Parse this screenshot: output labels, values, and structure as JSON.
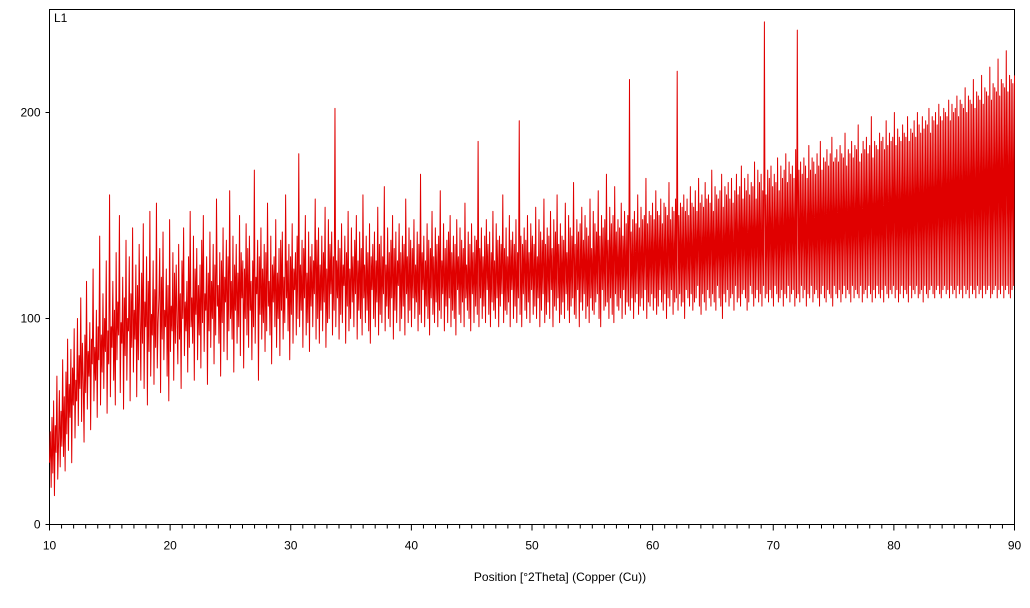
{
  "chart_data": {
    "type": "line",
    "panel_label": "L1",
    "xlabel": "Position [°2Theta] (Copper (Cu))",
    "ylabel": "",
    "xlim": [
      10,
      90
    ],
    "ylim": [
      0,
      250
    ],
    "x_ticks": [
      10,
      20,
      30,
      40,
      50,
      60,
      70,
      80,
      90
    ],
    "y_ticks": [
      0,
      100,
      200
    ],
    "grid": false,
    "legend": "none",
    "series_color": "#e00000",
    "series": [
      {
        "x_start": 10,
        "x_step": 0.1,
        "values": [
          30,
          45,
          18,
          52,
          25,
          60,
          14,
          48,
          35,
          72,
          22,
          40,
          65,
          28,
          55,
          38,
          80,
          33,
          62,
          26,
          74,
          44,
          90,
          36,
          68,
          52,
          85,
          30,
          76,
          58,
          95,
          42,
          70,
          60,
          100,
          48,
          82,
          66,
          110,
          50,
          88,
          70,
          40,
          92,
          64,
          118,
          56,
          84,
          72,
          98,
          46,
          90,
          78,
          124,
          60,
          86,
          70,
          104,
          52,
          96,
          80,
          140,
          58,
          92,
          74,
          112,
          66,
          100,
          84,
          128,
          54,
          94,
          78,
          160,
          62,
          96,
          86,
          118,
          70,
          104,
          58,
          132,
          80,
          108,
          92,
          150,
          64,
          98,
          88,
          120,
          56,
          110,
          82,
          138,
          70,
          100,
          94,
          130,
          60,
          112,
          86,
          144,
          74,
          104,
          90,
          126,
          62,
          116,
          80,
          136,
          100,
          70,
          122,
          88,
          146,
          66,
          108,
          96,
          130,
          58,
          118,
          84,
          152,
          72,
          102,
          92,
          128,
          68,
          114,
          86,
          156,
          76,
          98,
          110,
          134,
          64,
          120,
          90,
          142,
          80,
          104,
          96,
          124,
          72,
          116,
          60,
          148,
          84,
          106,
          94,
          132,
          70,
          122,
          88,
          126,
          98,
          78,
          136,
          90,
          112,
          66,
          128,
          100,
          144,
          82,
          108,
          94,
          118,
          74,
          130,
          86,
          152,
          96,
          110,
          88,
          140,
          70,
          124,
          102,
          134,
          80,
          116,
          92,
          126,
          76,
          138,
          98,
          150,
          84,
          112,
          104,
          130,
          68,
          122,
          94,
          142,
          86,
          118,
          100,
          136,
          78,
          126,
          92,
          158,
          106,
          116,
          88,
          132,
          72,
          128,
          98,
          144,
          84,
          120,
          108,
          138,
          80,
          130,
          94,
          162,
          100,
          118,
          90,
          140,
          74,
          126,
          104,
          136,
          88,
          122,
          96,
          150,
          82,
          132,
          110,
          128,
          76,
          124,
          100,
          146,
          92,
          134,
          86,
          140,
          104,
          118,
          80,
          128,
          96,
          172,
          88,
          120,
          112,
          138,
          70,
          130,
          102,
          144,
          90,
          124,
          98,
          136,
          84,
          132,
          94,
          156,
          106,
          118,
          92,
          140,
          78,
          126,
          108,
          130,
          96,
          148,
          86,
          122,
          100,
          134,
          82,
          138,
          104,
          142,
          90,
          120,
          98,
          160,
          110,
          128,
          94,
          136,
          80,
          130,
          102,
          146,
          88,
          124,
          114,
          132,
          92,
          140,
          100,
          180,
          96,
          126,
          104,
          138,
          86,
          134,
          110,
          150,
          92,
          122,
          98,
          142,
          84,
          130,
          106,
          136,
          96,
          128,
          112,
          158,
          90,
          138,
          100,
          144,
          88,
          126,
          104,
          140,
          94,
          132,
          108,
          154,
          86,
          124,
          98,
          148,
          100,
          136,
          112,
          142,
          92,
          130,
          104,
          202,
          96,
          128,
          110,
          138,
          90,
          134,
          102,
          146,
          98,
          126,
          116,
          140,
          88,
          132,
          106,
          152,
          94,
          124,
          100,
          144,
          108,
          130,
          96,
          138,
          112,
          150,
          90,
          128,
          104,
          142,
          100,
          134,
          92,
          160,
          110,
          126,
          98,
          140,
          104,
          132,
          94,
          146,
          88,
          130,
          114,
          136,
          100,
          142,
          96,
          128,
          108,
          154,
          92,
          136,
          102,
          140,
          98,
          130,
          112,
          164,
          94,
          126,
          106,
          144,
          100,
          132,
          96,
          138,
          110,
          150,
          90,
          134,
          104,
          142,
          98,
          128,
          116,
          146,
          94,
          132,
          100,
          140,
          106,
          136,
          92,
          158,
          112,
          130,
          98,
          144,
          104,
          138,
          96,
          134,
          110,
          148,
          100,
          126,
          108,
          142,
          94,
          136,
          102,
          170,
          98,
          132,
          114,
          140,
          96,
          128,
          106,
          146,
          100,
          138,
          92,
          134,
          110,
          152,
          102,
          130,
          98,
          144,
          108,
          136,
          96,
          140,
          104,
          162,
          100,
          128,
          112,
          146,
          94,
          134,
          106,
          138,
          98,
          142,
          110,
          150,
          96,
          132,
          104,
          140,
          100,
          136,
          92,
          148,
          114,
          130,
          102,
          144,
          98,
          138,
          108,
          134,
          96,
          156,
          110,
          126,
          104,
          142,
          100,
          136,
          94,
          146,
          112,
          132,
          98,
          140,
          106,
          138,
          102,
          186,
          96,
          134,
          110,
          144,
          100,
          130,
          106,
          140,
          98,
          148,
          114,
          136,
          102,
          142,
          96,
          132,
          108,
          152,
          104,
          128,
          100,
          146,
          110,
          138,
          96,
          140,
          106,
          136,
          112,
          160,
          98,
          134,
          104,
          144,
          102,
          130,
          108,
          150,
          96,
          138,
          114,
          142,
          100,
          136,
          106,
          148,
          98,
          132,
          110,
          196,
          102,
          140,
          96,
          136,
          112,
          144,
          104,
          138,
          100,
          150,
          108,
          132,
          98,
          146,
          114,
          140,
          102,
          136,
          106,
          154,
          100,
          130,
          110,
          148,
          96,
          142,
          104,
          138,
          112,
          158,
          98,
          136,
          102,
          144,
          108,
          140,
          100,
          152,
          114,
          134,
          96,
          148,
          106,
          142,
          104,
          160,
          110,
          136,
          98,
          146,
          102,
          140,
          108,
          138,
          100,
          156,
          112,
          132,
          104,
          150,
          98,
          144,
          106,
          140,
          110,
          166,
          102,
          136,
          100,
          148,
          114,
          142,
          96,
          146,
          108,
          154,
          104,
          138,
          112,
          150,
          100,
          144,
          106,
          140,
          98,
          158,
          110,
          134,
          104,
          152,
          102,
          146,
          108,
          142,
          112,
          162,
          100,
          140,
          96,
          150,
          114,
          144,
          104,
          148,
          106,
          170,
          108,
          138,
          100,
          154,
          110,
          146,
          102,
          150,
          98,
          164,
          112,
          142,
          106,
          148,
          104,
          144,
          110,
          156,
          100,
          140,
          114,
          152,
          102,
          146,
          108,
          150,
          106,
          216,
          104,
          142,
          110,
          148,
          100,
          152,
          108,
          146,
          112,
          160,
          102,
          144,
          106,
          154,
          110,
          148,
          104,
          150,
          114,
          168,
          100,
          146,
          108,
          152,
          106,
          150,
          112,
          156,
          104,
          148,
          110,
          162,
          102,
          152,
          106,
          150,
          114,
          158,
          108,
          146,
          104,
          156,
          112,
          154,
          100,
          150,
          110,
          166,
          106,
          148,
          114,
          154,
          102,
          152,
          108,
          158,
          110,
          220,
          104,
          150,
          112,
          156,
          106,
          154,
          108,
          160,
          100,
          152,
          114,
          158,
          110,
          150,
          106,
          164,
          112,
          156,
          104,
          154,
          108,
          162,
          110,
          152,
          116,
          168,
          106,
          156,
          102,
          160,
          112,
          154,
          108,
          166,
          104,
          158,
          114,
          160,
          110,
          156,
          106,
          172,
          112,
          152,
          108,
          164,
          104,
          160,
          116,
          158,
          110,
          162,
          106,
          170,
          100,
          154,
          112,
          164,
          108,
          160,
          114,
          166,
          106,
          158,
          110,
          168,
          112,
          156,
          104,
          162,
          116,
          170,
          108,
          160,
          110,
          164,
          106,
          174,
          112,
          158,
          114,
          168,
          110,
          162,
          104,
          170,
          108,
          160,
          116,
          166,
          112,
          164,
          106,
          176,
          110,
          158,
          114,
          172,
          108,
          166,
          112,
          170,
          106,
          162,
          116,
          244,
          110,
          160,
          112,
          172,
          108,
          168,
          114,
          174,
          110,
          164,
          106,
          170,
          116,
          166,
          112,
          178,
          108,
          162,
          110,
          174,
          114,
          168,
          106,
          172,
          112,
          180,
          110,
          166,
          116,
          176,
          108,
          170,
          112,
          174,
          114,
          168,
          106,
          182,
          110,
          240,
          112,
          172,
          108,
          176,
          116,
          170,
          110,
          178,
          114,
          174,
          106,
          168,
          112,
          184,
          110,
          172,
          116,
          178,
          108,
          176,
          112,
          170,
          114,
          180,
          110,
          174,
          106,
          186,
          112,
          172,
          116,
          178,
          110,
          176,
          108,
          182,
          114,
          174,
          112,
          180,
          110,
          188,
          106,
          176,
          116,
          178,
          112,
          182,
          110,
          176,
          114,
          184,
          108,
          180,
          112,
          178,
          116,
          190,
          110,
          174,
          114,
          182,
          112,
          180,
          108,
          186,
          116,
          178,
          110,
          184,
          114,
          182,
          112,
          194,
          110,
          176,
          116,
          180,
          108,
          186,
          112,
          182,
          114,
          188,
          110,
          180,
          116,
          184,
          112,
          198,
          108,
          178,
          114,
          186,
          110,
          184,
          116,
          182,
          112,
          190,
          110,
          186,
          114,
          188,
          108,
          182,
          116,
          196,
          112,
          184,
          110,
          190,
          114,
          186,
          112,
          188,
          116,
          200,
          110,
          184,
          114,
          192,
          108,
          188,
          112,
          186,
          116,
          194,
          110,
          190,
          114,
          188,
          112,
          198,
          108,
          186,
          116,
          192,
          110,
          190,
          114,
          196,
          112,
          188,
          116,
          200,
          110,
          194,
          112,
          190,
          114,
          198,
          108,
          192,
          116,
          196,
          112,
          194,
          110,
          202,
          114,
          190,
          116,
          198,
          112,
          196,
          110,
          200,
          114,
          194,
          116,
          204,
          112,
          198,
          110,
          196,
          114,
          202,
          116,
          200,
          112,
          198,
          114,
          206,
          110,
          196,
          116,
          204,
          112,
          200,
          114,
          202,
          110,
          208,
          116,
          198,
          112,
          206,
          114,
          204,
          110,
          202,
          116,
          212,
          112,
          200,
          114,
          208,
          110,
          206,
          116,
          204,
          112,
          216,
          114,
          202,
          110,
          210,
          116,
          208,
          112,
          206,
          114,
          218,
          110,
          204,
          116,
          212,
          112,
          210,
          114,
          208,
          116,
          222,
          110,
          206,
          112,
          214,
          114,
          212,
          116,
          210,
          110,
          226,
          114,
          208,
          112,
          216,
          116,
          214,
          110,
          212,
          114,
          230,
          116,
          210,
          112,
          218,
          110,
          216,
          114,
          214,
          116,
          218
        ]
      }
    ]
  }
}
